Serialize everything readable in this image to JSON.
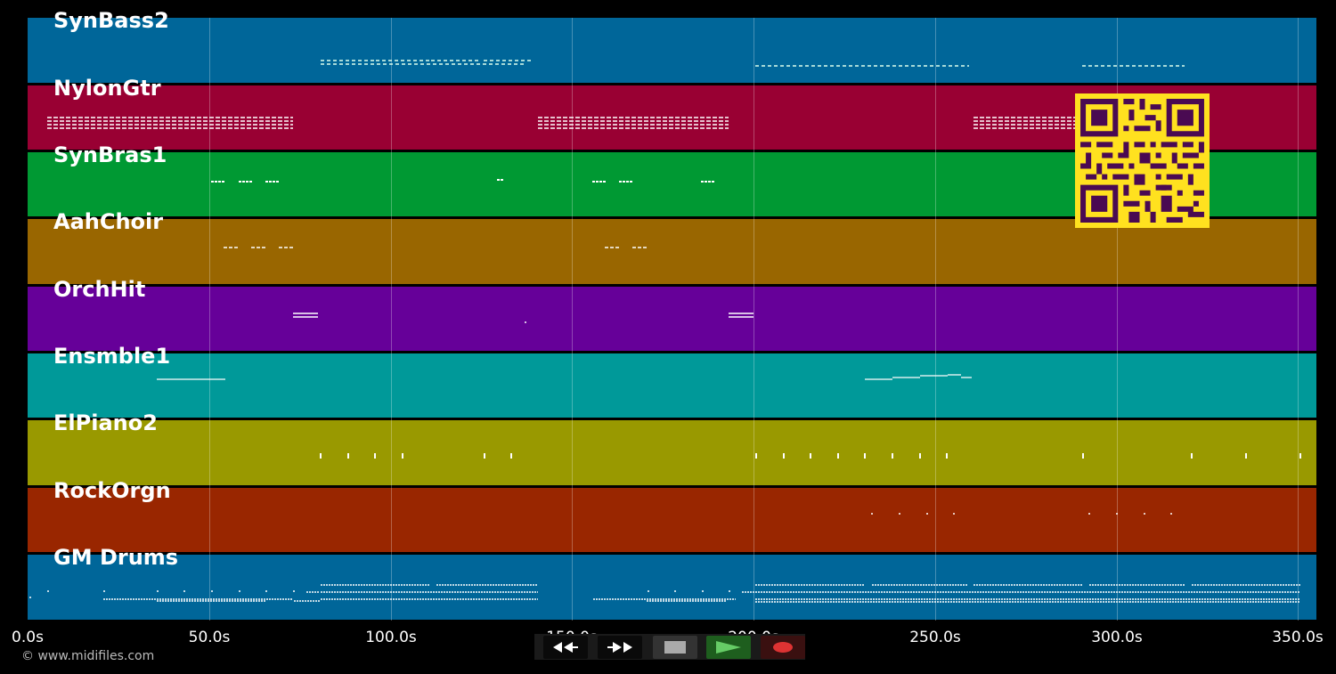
{
  "tracks": [
    {
      "name": "SynBass2",
      "color": "#006699"
    },
    {
      "name": "NylonGtr",
      "color": "#990033"
    },
    {
      "name": "SynBras1",
      "color": "#009933"
    },
    {
      "name": "AahChoir",
      "color": "#996600"
    },
    {
      "name": "OrchHit",
      "color": "#660099"
    },
    {
      "name": "Ensmble1",
      "color": "#009999"
    },
    {
      "name": "ElPiano2",
      "color": "#999900"
    },
    {
      "name": "RockOrgn",
      "color": "#992600"
    },
    {
      "name": "GM Drums",
      "color": "#006699"
    }
  ],
  "timeline": {
    "ticks": [
      "0.0s",
      "50.0s",
      "100.0s",
      "150.0s",
      "200.0s",
      "250.0s",
      "300.0s",
      "350.0s"
    ]
  },
  "copyright": "© www.midifiles.com",
  "transport": {
    "buttons": [
      {
        "name": "rewind-button",
        "icon": "rewind-icon"
      },
      {
        "name": "fast-forward-button",
        "icon": "fast-forward-icon"
      },
      {
        "name": "stop-button",
        "icon": "stop-icon"
      },
      {
        "name": "play-button",
        "icon": "play-icon"
      },
      {
        "name": "record-button",
        "icon": "record-icon"
      }
    ]
  },
  "qr_code": {
    "icon": "qr-code-icon",
    "color": "#ffe11f",
    "module_color": "#4a0a52"
  }
}
